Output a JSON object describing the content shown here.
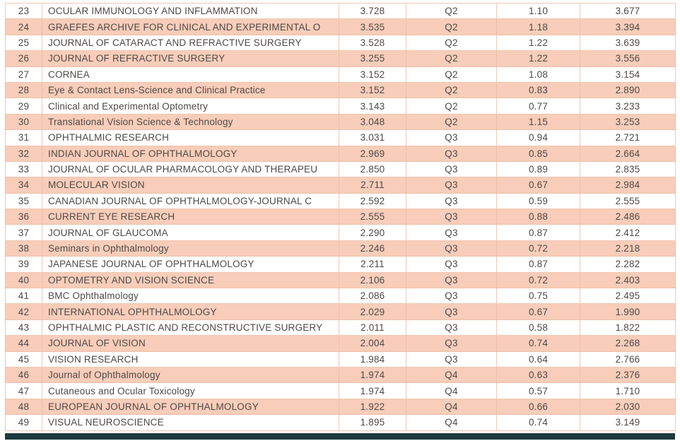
{
  "colors": {
    "highlight": "#f8cdb9",
    "border_salmon": "#f0c7b2",
    "border_salmon_dark": "#edbfa8",
    "text": "#4e4a48",
    "footer": "#1d3a3f"
  },
  "table": {
    "rows": [
      {
        "rank": "23",
        "name": "OCULAR IMMUNOLOGY AND INFLAMMATION",
        "impact_factor": "3.728",
        "quartile": "Q2",
        "metric1": "1.10",
        "metric2": "3.677",
        "highlighted": false
      },
      {
        "rank": "24",
        "name": "GRAEFES ARCHIVE FOR CLINICAL AND EXPERIMENTAL O",
        "impact_factor": "3.535",
        "quartile": "Q2",
        "metric1": "1.18",
        "metric2": "3.394",
        "highlighted": true
      },
      {
        "rank": "25",
        "name": "JOURNAL OF CATARACT AND REFRACTIVE SURGERY",
        "impact_factor": "3.528",
        "quartile": "Q2",
        "metric1": "1.22",
        "metric2": "3.639",
        "highlighted": false
      },
      {
        "rank": "26",
        "name": "JOURNAL OF REFRACTIVE SURGERY",
        "impact_factor": "3.255",
        "quartile": "Q2",
        "metric1": "1.22",
        "metric2": "3.556",
        "highlighted": true
      },
      {
        "rank": "27",
        "name": "CORNEA",
        "impact_factor": "3.152",
        "quartile": "Q2",
        "metric1": "1.08",
        "metric2": "3.154",
        "highlighted": false
      },
      {
        "rank": "28",
        "name": "Eye & Contact Lens-Science and Clinical Practice",
        "impact_factor": "3.152",
        "quartile": "Q2",
        "metric1": "0.83",
        "metric2": "2.890",
        "highlighted": true
      },
      {
        "rank": "29",
        "name": "Clinical and Experimental Optometry",
        "impact_factor": "3.143",
        "quartile": "Q2",
        "metric1": "0.77",
        "metric2": "3.233",
        "highlighted": false
      },
      {
        "rank": "30",
        "name": "Translational Vision Science & Technology",
        "impact_factor": "3.048",
        "quartile": "Q2",
        "metric1": "1.15",
        "metric2": "3.253",
        "highlighted": true
      },
      {
        "rank": "31",
        "name": "OPHTHALMIC RESEARCH",
        "impact_factor": "3.031",
        "quartile": "Q3",
        "metric1": "0.94",
        "metric2": "2.721",
        "highlighted": false
      },
      {
        "rank": "32",
        "name": "INDIAN JOURNAL OF OPHTHALMOLOGY",
        "impact_factor": "2.969",
        "quartile": "Q3",
        "metric1": "0.85",
        "metric2": "2.664",
        "highlighted": true
      },
      {
        "rank": "33",
        "name": "JOURNAL OF OCULAR PHARMACOLOGY AND THERAPEU",
        "impact_factor": "2.850",
        "quartile": "Q3",
        "metric1": "0.89",
        "metric2": "2.835",
        "highlighted": false
      },
      {
        "rank": "34",
        "name": "MOLECULAR VISION",
        "impact_factor": "2.711",
        "quartile": "Q3",
        "metric1": "0.67",
        "metric2": "2.984",
        "highlighted": true
      },
      {
        "rank": "35",
        "name": "CANADIAN JOURNAL OF OPHTHALMOLOGY-JOURNAL C",
        "impact_factor": "2.592",
        "quartile": "Q3",
        "metric1": "0.59",
        "metric2": "2.555",
        "highlighted": false
      },
      {
        "rank": "36",
        "name": "CURRENT EYE RESEARCH",
        "impact_factor": "2.555",
        "quartile": "Q3",
        "metric1": "0.88",
        "metric2": "2.486",
        "highlighted": true
      },
      {
        "rank": "37",
        "name": "JOURNAL OF GLAUCOMA",
        "impact_factor": "2.290",
        "quartile": "Q3",
        "metric1": "0.87",
        "metric2": "2.412",
        "highlighted": false
      },
      {
        "rank": "38",
        "name": "Seminars in Ophthalmology",
        "impact_factor": "2.246",
        "quartile": "Q3",
        "metric1": "0.72",
        "metric2": "2.218",
        "highlighted": true
      },
      {
        "rank": "39",
        "name": "JAPANESE JOURNAL OF OPHTHALMOLOGY",
        "impact_factor": "2.211",
        "quartile": "Q3",
        "metric1": "0.87",
        "metric2": "2.282",
        "highlighted": false
      },
      {
        "rank": "40",
        "name": "OPTOMETRY AND VISION SCIENCE",
        "impact_factor": "2.106",
        "quartile": "Q3",
        "metric1": "0.72",
        "metric2": "2.403",
        "highlighted": true
      },
      {
        "rank": "41",
        "name": "BMC Ophthalmology",
        "impact_factor": "2.086",
        "quartile": "Q3",
        "metric1": "0.75",
        "metric2": "2.495",
        "highlighted": false
      },
      {
        "rank": "42",
        "name": "INTERNATIONAL OPHTHALMOLOGY",
        "impact_factor": "2.029",
        "quartile": "Q3",
        "metric1": "0.67",
        "metric2": "1.990",
        "highlighted": true
      },
      {
        "rank": "43",
        "name": "OPHTHALMIC PLASTIC AND RECONSTRUCTIVE SURGERY",
        "impact_factor": "2.011",
        "quartile": "Q3",
        "metric1": "0.58",
        "metric2": "1.822",
        "highlighted": false
      },
      {
        "rank": "44",
        "name": "JOURNAL OF VISION",
        "impact_factor": "2.004",
        "quartile": "Q3",
        "metric1": "0.74",
        "metric2": "2.268",
        "highlighted": true
      },
      {
        "rank": "45",
        "name": "VISION RESEARCH",
        "impact_factor": "1.984",
        "quartile": "Q3",
        "metric1": "0.64",
        "metric2": "2.766",
        "highlighted": false
      },
      {
        "rank": "46",
        "name": "Journal of Ophthalmology",
        "impact_factor": "1.974",
        "quartile": "Q4",
        "metric1": "0.63",
        "metric2": "2.376",
        "highlighted": true
      },
      {
        "rank": "47",
        "name": "Cutaneous and Ocular Toxicology",
        "impact_factor": "1.974",
        "quartile": "Q4",
        "metric1": "0.57",
        "metric2": "1.710",
        "highlighted": false
      },
      {
        "rank": "48",
        "name": "EUROPEAN JOURNAL OF OPHTHALMOLOGY",
        "impact_factor": "1.922",
        "quartile": "Q4",
        "metric1": "0.66",
        "metric2": "2.030",
        "highlighted": true
      },
      {
        "rank": "49",
        "name": "VISUAL NEUROSCIENCE",
        "impact_factor": "1.895",
        "quartile": "Q4",
        "metric1": "0.74",
        "metric2": "3.149",
        "highlighted": false
      }
    ]
  }
}
